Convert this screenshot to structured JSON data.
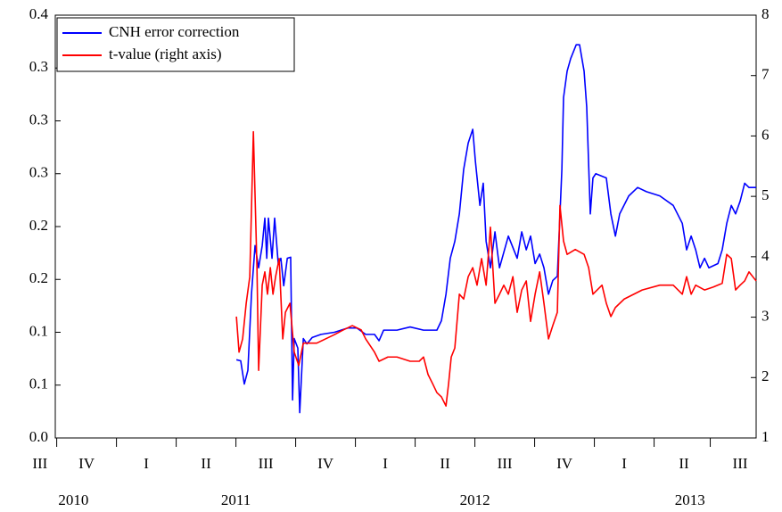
{
  "chart_data": {
    "type": "line",
    "xlim": [
      2010.744,
      2013.677
    ],
    "xticks": [
      {
        "value": 2010.68,
        "label": "III"
      },
      {
        "value": 2010.875,
        "label": "IV"
      },
      {
        "value": 2011.125,
        "label": "I"
      },
      {
        "value": 2011.375,
        "label": "II"
      },
      {
        "value": 2011.625,
        "label": "III"
      },
      {
        "value": 2011.875,
        "label": "IV"
      },
      {
        "value": 2012.125,
        "label": "I"
      },
      {
        "value": 2012.375,
        "label": "II"
      },
      {
        "value": 2012.625,
        "label": "III"
      },
      {
        "value": 2012.875,
        "label": "IV"
      },
      {
        "value": 2013.125,
        "label": "I"
      },
      {
        "value": 2013.375,
        "label": "II"
      },
      {
        "value": 2013.61,
        "label": "III"
      }
    ],
    "year_labels": [
      {
        "value": 2010.82,
        "label": "2010"
      },
      {
        "value": 2011.5,
        "label": "2011"
      },
      {
        "value": 2012.5,
        "label": "2012"
      },
      {
        "value": 2013.4,
        "label": "2013"
      }
    ],
    "ylim": [
      0,
      0.4
    ],
    "yticks": [
      {
        "value": 0,
        "label": "0.0"
      },
      {
        "value": 0.05,
        "label": "0.1"
      },
      {
        "value": 0.1,
        "label": "0.1"
      },
      {
        "value": 0.15,
        "label": "0.2"
      },
      {
        "value": 0.2,
        "label": "0.2"
      },
      {
        "value": 0.25,
        "label": "0.3"
      },
      {
        "value": 0.3,
        "label": "0.3"
      },
      {
        "value": 0.35,
        "label": "0.3"
      },
      0.4
    ],
    "y2lim": [
      1,
      8
    ],
    "y2ticks": [
      1,
      2,
      3,
      4,
      5,
      6,
      7,
      8
    ],
    "grid": false,
    "legend": "top-left",
    "series": [
      {
        "name": "CNH  error correction",
        "color": "#0000ff",
        "x": [
          2011.502,
          2011.52,
          2011.535,
          2011.55,
          2011.565,
          2011.58,
          2011.595,
          2011.61,
          2011.621,
          2011.629,
          2011.636,
          2011.651,
          2011.662,
          2011.677,
          2011.688,
          2011.7,
          2011.715,
          2011.729,
          2011.737,
          2011.744,
          2011.759,
          2011.767,
          2011.782,
          2011.797,
          2011.819,
          2011.856,
          2011.912,
          2011.968,
          2012.006,
          2012.043,
          2012.08,
          2012.099,
          2012.118,
          2012.174,
          2012.229,
          2012.285,
          2012.341,
          2012.36,
          2012.379,
          2012.397,
          2012.416,
          2012.435,
          2012.453,
          2012.472,
          2012.491,
          2012.502,
          2012.521,
          2012.535,
          2012.547,
          2012.565,
          2012.584,
          2012.603,
          2012.64,
          2012.677,
          2012.696,
          2012.715,
          2012.733,
          2012.752,
          2012.771,
          2012.789,
          2012.808,
          2012.826,
          2012.845,
          2012.864,
          2012.871,
          2012.886,
          2012.901,
          2012.924,
          2012.938,
          2012.957,
          2012.968,
          2012.983,
          2012.994,
          2013.006,
          2013.05,
          2013.069,
          2013.088,
          2013.106,
          2013.144,
          2013.181,
          2013.218,
          2013.274,
          2013.33,
          2013.368,
          2013.386,
          2013.405,
          2013.424,
          2013.442,
          2013.461,
          2013.479,
          2013.517,
          2013.535,
          2013.554,
          2013.573,
          2013.591,
          2013.61,
          2013.629,
          2013.647,
          2013.677
        ],
        "values": [
          0.074,
          0.073,
          0.051,
          0.064,
          0.136,
          0.182,
          0.161,
          0.182,
          0.208,
          0.17,
          0.208,
          0.17,
          0.208,
          0.165,
          0.17,
          0.144,
          0.17,
          0.171,
          0.036,
          0.094,
          0.085,
          0.024,
          0.094,
          0.089,
          0.095,
          0.098,
          0.1,
          0.104,
          0.104,
          0.098,
          0.098,
          0.092,
          0.102,
          0.102,
          0.105,
          0.102,
          0.102,
          0.111,
          0.136,
          0.17,
          0.186,
          0.212,
          0.254,
          0.279,
          0.292,
          0.262,
          0.22,
          0.241,
          0.186,
          0.161,
          0.195,
          0.161,
          0.191,
          0.17,
          0.195,
          0.178,
          0.191,
          0.165,
          0.174,
          0.161,
          0.136,
          0.149,
          0.153,
          0.254,
          0.322,
          0.347,
          0.359,
          0.372,
          0.372,
          0.347,
          0.313,
          0.212,
          0.246,
          0.25,
          0.246,
          0.212,
          0.191,
          0.212,
          0.229,
          0.237,
          0.233,
          0.229,
          0.22,
          0.203,
          0.178,
          0.191,
          0.178,
          0.161,
          0.17,
          0.161,
          0.165,
          0.178,
          0.203,
          0.22,
          0.212,
          0.224,
          0.241,
          0.237,
          0.237
        ]
      },
      {
        "name": "t-value (right axis)",
        "color": "#ff0000",
        "axis": "y2",
        "x": [
          2011.502,
          2011.513,
          2011.528,
          2011.543,
          2011.558,
          2011.573,
          2011.588,
          2011.595,
          2011.61,
          2011.621,
          2011.632,
          2011.644,
          2011.655,
          2011.666,
          2011.681,
          2011.696,
          2011.707,
          2011.726,
          2011.744,
          2011.763,
          2011.782,
          2011.8,
          2011.838,
          2011.875,
          2011.912,
          2011.95,
          2011.987,
          2012.024,
          2012.043,
          2012.08,
          2012.099,
          2012.136,
          2012.174,
          2012.229,
          2012.267,
          2012.285,
          2012.304,
          2012.323,
          2012.341,
          2012.36,
          2012.379,
          2012.39,
          2012.401,
          2012.416,
          2012.435,
          2012.453,
          2012.472,
          2012.491,
          2012.509,
          2012.528,
          2012.547,
          2012.565,
          2012.584,
          2012.603,
          2012.621,
          2012.64,
          2012.659,
          2012.677,
          2012.696,
          2012.715,
          2012.733,
          2012.752,
          2012.771,
          2012.789,
          2012.808,
          2012.826,
          2012.845,
          2012.856,
          2012.871,
          2012.886,
          2012.92,
          2012.957,
          2012.976,
          2012.994,
          2013.032,
          2013.05,
          2013.069,
          2013.088,
          2013.125,
          2013.2,
          2013.274,
          2013.33,
          2013.368,
          2013.386,
          2013.405,
          2013.424,
          2013.461,
          2013.498,
          2013.535,
          2013.554,
          2013.573,
          2013.591,
          2013.61,
          2013.629,
          2013.647,
          2013.677
        ],
        "values": [
          3.01,
          2.42,
          2.64,
          3.23,
          3.67,
          6.07,
          3.82,
          2.12,
          3.53,
          3.75,
          3.38,
          3.82,
          3.38,
          3.67,
          3.97,
          2.64,
          3.08,
          3.23,
          2.42,
          2.2,
          2.57,
          2.57,
          2.57,
          2.64,
          2.71,
          2.79,
          2.86,
          2.79,
          2.64,
          2.42,
          2.27,
          2.34,
          2.34,
          2.27,
          2.27,
          2.34,
          2.05,
          1.9,
          1.75,
          1.68,
          1.53,
          1.9,
          2.34,
          2.49,
          3.38,
          3.3,
          3.67,
          3.82,
          3.53,
          3.97,
          3.53,
          4.49,
          3.23,
          3.38,
          3.53,
          3.38,
          3.67,
          3.08,
          3.45,
          3.6,
          2.93,
          3.38,
          3.75,
          3.23,
          2.64,
          2.86,
          3.08,
          4.85,
          4.26,
          4.04,
          4.12,
          4.04,
          3.82,
          3.38,
          3.53,
          3.23,
          3.01,
          3.16,
          3.3,
          3.45,
          3.53,
          3.53,
          3.38,
          3.67,
          3.38,
          3.53,
          3.45,
          3.5,
          3.56,
          4.04,
          3.97,
          3.45,
          3.53,
          3.6,
          3.75,
          3.6
        ]
      }
    ]
  }
}
